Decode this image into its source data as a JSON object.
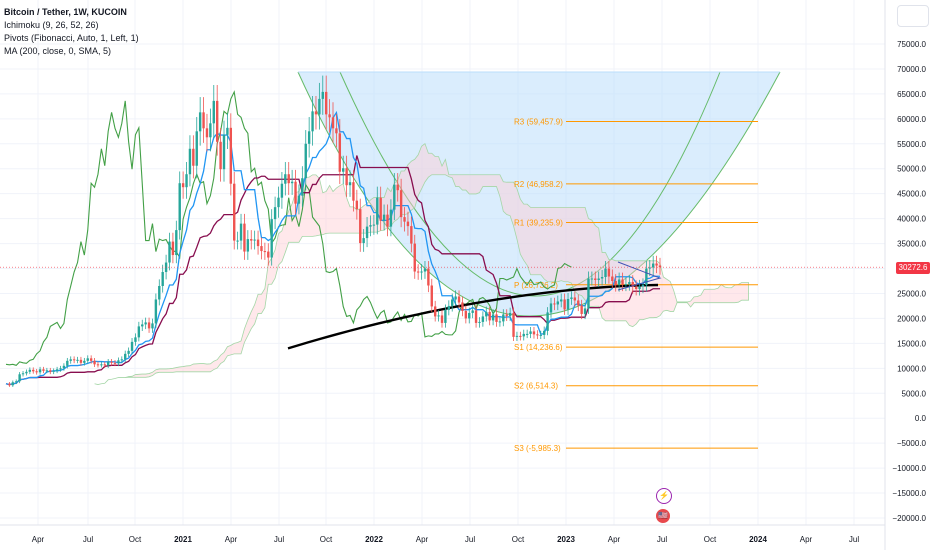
{
  "legend": {
    "title": "Bitcoin / Tether, 1W, KUCOIN",
    "ichimoku": "Ichimoku (9, 26, 52, 26)",
    "pivots": "Pivots (Fibonacci, Auto, 1, Left, 1)",
    "ma": "MA (200, close, 0, SMA, 5)"
  },
  "last_price_label": "30272.6",
  "colors": {
    "up": "#26a69a",
    "down": "#ef5350",
    "tenkan": "#2196f3",
    "kijun": "#880e4f",
    "lagging": "#43a047",
    "ma": "#000000",
    "pivot": "#ff9800",
    "price": "#f23645",
    "cloud_up": "#a5d6a7",
    "cloud_down": "#ffcdd2",
    "arc_fill": "#bbdefb",
    "arc_line": "#66bb6a"
  },
  "events": {
    "bolt": "⚡",
    "flag": "🇺🇸"
  },
  "chart_data": {
    "type": "candlestick",
    "y_axis_ticks": [
      75000,
      70000,
      65000,
      60000,
      55000,
      50000,
      45000,
      40000,
      35000,
      30000,
      25000,
      20000,
      15000,
      10000,
      5000,
      0,
      -5000,
      -10000,
      -15000,
      -20000
    ],
    "y_axis_labels": [
      "75000.0",
      "70000.0",
      "65000.0",
      "60000.0",
      "55000.0",
      "50000.0",
      "45000.0",
      "40000.0",
      "35000.0",
      "30000.0",
      "25000.0",
      "20000.0",
      "15000.0",
      "10000.0",
      "5000.0",
      "0.0",
      "−5000.0",
      "−10000.0",
      "−15000.0",
      "−20000.0"
    ],
    "x_axis_labels": [
      "Apr",
      "Jul",
      "Oct",
      "2021",
      "Apr",
      "Jul",
      "Oct",
      "2022",
      "Apr",
      "Jul",
      "Oct",
      "2023",
      "Apr",
      "Jul",
      "Oct",
      "2024",
      "Apr",
      "Jul"
    ],
    "pivot_levels": [
      {
        "label": "R3 (59,457.9)",
        "value": 59457.9
      },
      {
        "label": "R2 (46,958.2)",
        "value": 46958.2
      },
      {
        "label": "R1 (39,235.9)",
        "value": 39235.9
      },
      {
        "label": "P (26,736.2)",
        "value": 26736.2
      },
      {
        "label": "S1 (14,236.6)",
        "value": 14236.6
      },
      {
        "label": "S2 (6,514.3)",
        "value": 6514.3
      },
      {
        "label": "S3 (-5,985.3)",
        "value": -5985.3
      }
    ],
    "last_price": 30272.6,
    "close_series": [
      6900,
      6600,
      7200,
      7400,
      8800,
      9000,
      9300,
      9700,
      9400,
      9200,
      9800,
      9500,
      9600,
      9300,
      9500,
      9800,
      10000,
      10500,
      11500,
      11800,
      11600,
      11700,
      11100,
      11500,
      12000,
      11500,
      10800,
      10700,
      10800,
      10600,
      11300,
      11100,
      11000,
      11600,
      11800,
      12900,
      13500,
      15300,
      16200,
      18400,
      18800,
      19200,
      18000,
      19000,
      23800,
      26500,
      29300,
      31200,
      35400,
      32700,
      37700,
      47100,
      46300,
      48900,
      54000,
      50600,
      57500,
      61300,
      58100,
      56300,
      59100,
      63600,
      55400,
      49900,
      56800,
      58200,
      47000,
      35600,
      35600,
      39000,
      33400,
      35900,
      35600,
      35800,
      34500,
      33500,
      33400,
      32200,
      39900,
      42300,
      44200,
      47000,
      48900,
      47100,
      47400,
      43000,
      44600,
      48100,
      55000,
      57500,
      61500,
      60900,
      64000,
      65400,
      60900,
      60300,
      58100,
      57100,
      49400,
      50100,
      46700,
      47300,
      43600,
      41900,
      35100,
      36100,
      38400,
      38700,
      38800,
      44200,
      39600,
      40800,
      38400,
      41800,
      46800,
      45700,
      40300,
      39400,
      38500,
      35000,
      29400,
      29200,
      29400,
      30000,
      26600,
      22400,
      20400,
      20600,
      19100,
      21700,
      22500,
      23800,
      24400,
      23200,
      21500,
      20000,
      21100,
      21600,
      19100,
      19300,
      20400,
      21300,
      19600,
      20800,
      19300,
      19400,
      20800,
      20500,
      21100,
      16300,
      16500,
      16400,
      16900,
      16900,
      17400,
      16800,
      16700,
      16700,
      17500,
      21200,
      23000,
      22800,
      23400,
      23800,
      21800,
      23900,
      24200,
      23600,
      22600,
      20900,
      22000,
      28000,
      28000,
      27700,
      28000,
      28300,
      30000,
      28400,
      27500,
      26700,
      27800,
      26800,
      26900,
      27300,
      26300,
      25900,
      26400,
      26700,
      30000,
      30200,
      31000,
      30600,
      30272.6
    ],
    "ma200": {
      "start_value": 14000,
      "end_value": 26700
    }
  }
}
